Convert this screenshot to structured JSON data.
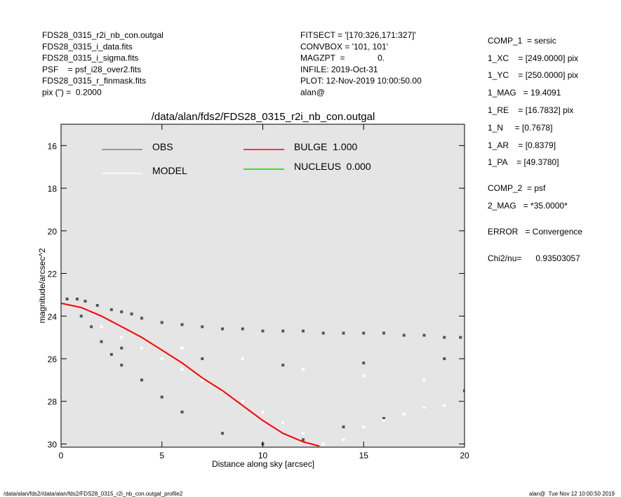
{
  "header": {
    "left": [
      "FDS28_0315_r2i_nb_con.outgal",
      "FDS28_0315_i_data.fits",
      "FDS28_0315_i_sigma.fits",
      "PSF    = psf_i28_over2.fits",
      "FDS28_0315_r_finmask.fits",
      "pix (\") =  0.2000"
    ],
    "middle": [
      "FITSECT = '[170:326,171:327]'",
      "CONVBOX = '101, 101'",
      "MAGZPT  =              0.",
      "INFILE: 2019-Oct-31",
      "PLOT: 12-Nov-2019 10:00:50.00",
      "alan@"
    ]
  },
  "params": [
    "COMP_1  = sersic",
    "1_XC    = [249.0000] pix",
    "1_YC    = [250.0000] pix",
    "1_MAG   = 19.4091",
    "1_RE    = [16.7832] pix",
    "1_N     = [0.7678]",
    "1_AR    = [0.8379]",
    "1_PA    = [49.3780]",
    "COMP_2  = psf",
    "2_MAG   = *35.0000*",
    "ERROR   = Convergence",
    "Chi2/nu=      0.93503057"
  ],
  "footer": {
    "left": "/data/alan/fds2//data/alan/fds2/FDS28_0315_r2i_nb_con.outgal_profile2",
    "right": "alan@  Tue Nov 12 10:00:50 2019"
  },
  "chart_data": {
    "type": "scatter",
    "title": "/data/alan/fds2/FDS28_0315_r2i_nb_con.outgal",
    "x_label": "Distance along sky [arcsec]",
    "y_label": "magnitude/arcsec^2",
    "xlim": [
      0,
      20
    ],
    "ylim": [
      30.15,
      15.0
    ],
    "xticks": [
      0,
      5,
      10,
      15,
      20
    ],
    "yticks": [
      16,
      18,
      20,
      22,
      24,
      26,
      28,
      30
    ],
    "background": "#e5e5e5",
    "series": [
      {
        "name": "OBS",
        "color": "#555555",
        "style": "points",
        "x": [
          0.3,
          0.8,
          1.2,
          1.8,
          2.5,
          3,
          3.5,
          4,
          5,
          6,
          7,
          8,
          9,
          10,
          11,
          12,
          13,
          14,
          15,
          16,
          17,
          18,
          19,
          19.8,
          1,
          1.5,
          2,
          2.5,
          3,
          4,
          5,
          6,
          8,
          10,
          12,
          14,
          16,
          18,
          20,
          3,
          7,
          11,
          15,
          19
        ],
        "values": [
          23.2,
          23.2,
          23.3,
          23.5,
          23.7,
          23.8,
          23.9,
          24.1,
          24.3,
          24.4,
          24.5,
          24.6,
          24.6,
          24.7,
          24.7,
          24.7,
          24.8,
          24.8,
          24.8,
          24.8,
          24.9,
          24.9,
          25.0,
          25.0,
          24.0,
          24.5,
          25.2,
          25.8,
          26.3,
          27.0,
          27.8,
          28.5,
          29.5,
          30.0,
          29.8,
          29.2,
          28.8,
          28.3,
          27.5,
          25.5,
          26.0,
          26.3,
          26.2,
          26.0
        ]
      },
      {
        "name": "MODEL",
        "color": "#ffffff",
        "style": "points",
        "x": [
          2,
          3,
          4,
          5,
          6,
          7,
          8,
          9,
          10,
          11,
          12,
          13,
          14,
          15,
          16,
          17,
          18,
          19,
          20,
          6,
          9,
          12,
          15,
          18
        ],
        "values": [
          24.5,
          25,
          25.5,
          26,
          26.5,
          27,
          27.5,
          28,
          28.5,
          29,
          29.5,
          30,
          29.8,
          29.2,
          28.9,
          28.6,
          28.3,
          28.2,
          28.0,
          25.5,
          26,
          26.5,
          26.8,
          27
        ]
      },
      {
        "name": "BULGE  1.000",
        "color": "#ff0000",
        "style": "line",
        "x": [
          0,
          1,
          2,
          3,
          4,
          5,
          6,
          7,
          8,
          9,
          10,
          11,
          12,
          12.8
        ],
        "values": [
          23.4,
          23.6,
          24.0,
          24.5,
          25.0,
          25.6,
          26.2,
          26.9,
          27.5,
          28.2,
          28.9,
          29.5,
          29.9,
          30.1
        ]
      },
      {
        "name": "NUCLEUS  0.000",
        "color": "#00dd00",
        "style": "line",
        "x": [],
        "values": []
      }
    ]
  }
}
